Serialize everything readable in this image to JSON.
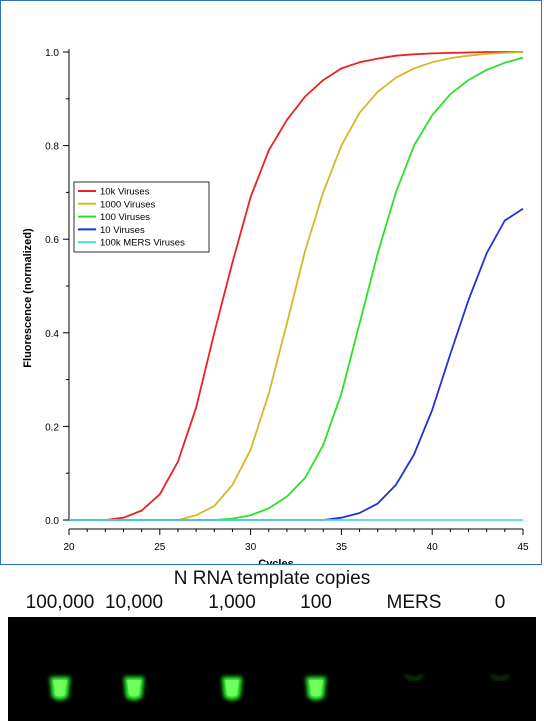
{
  "colors": {
    "frame": "#2e75b6",
    "glow": "#33ff33",
    "gel_background": "#000000"
  },
  "chart_data": {
    "type": "line",
    "title": "",
    "xlabel": "Cycles",
    "ylabel": "Fluorescence (normalized)",
    "xlim": [
      20,
      45
    ],
    "ylim": [
      0,
      1.0
    ],
    "xticks": [
      20,
      25,
      30,
      35,
      40,
      45
    ],
    "yticks": [
      0.0,
      0.2,
      0.4,
      0.6,
      0.8,
      1.0
    ],
    "xtick_labels": [
      "20",
      "25",
      "30",
      "35",
      "40",
      "45"
    ],
    "ytick_labels": [
      "0.0",
      "0.2",
      "0.4",
      "0.6",
      "0.8",
      "1.0"
    ],
    "grid": false,
    "legend_position": "middle-left",
    "x": [
      20,
      21,
      22,
      23,
      24,
      25,
      26,
      27,
      28,
      29,
      30,
      31,
      32,
      33,
      34,
      35,
      36,
      37,
      38,
      39,
      40,
      41,
      42,
      43,
      44,
      45
    ],
    "series": [
      {
        "name": "10k Viruses",
        "color": "#e8231f",
        "values": [
          0,
          0,
          0,
          0.005,
          0.02,
          0.055,
          0.125,
          0.24,
          0.4,
          0.55,
          0.69,
          0.79,
          0.855,
          0.905,
          0.94,
          0.965,
          0.978,
          0.986,
          0.992,
          0.995,
          0.997,
          0.998,
          0.999,
          1.0,
          1.0,
          1.0
        ]
      },
      {
        "name": "1000 Viruses",
        "color": "#d4b82a",
        "values": [
          0,
          0,
          0,
          0,
          0,
          0,
          0,
          0.01,
          0.03,
          0.075,
          0.15,
          0.27,
          0.42,
          0.575,
          0.7,
          0.8,
          0.87,
          0.915,
          0.945,
          0.965,
          0.978,
          0.987,
          0.992,
          0.996,
          0.998,
          1.0
        ]
      },
      {
        "name": "100 Viruses",
        "color": "#29e229",
        "values": [
          0,
          0,
          0,
          0,
          0,
          0,
          0,
          0,
          0,
          0.003,
          0.01,
          0.025,
          0.05,
          0.09,
          0.16,
          0.27,
          0.42,
          0.57,
          0.7,
          0.8,
          0.865,
          0.91,
          0.94,
          0.962,
          0.977,
          0.988
        ]
      },
      {
        "name": "10 Viruses",
        "color": "#2233d6",
        "values": [
          0,
          0,
          0,
          0,
          0,
          0,
          0,
          0,
          0,
          0,
          0,
          0,
          0,
          0,
          0,
          0.005,
          0.015,
          0.035,
          0.075,
          0.14,
          0.235,
          0.355,
          0.47,
          0.57,
          0.64,
          0.665
        ]
      },
      {
        "name": "100k MERS Viruses",
        "color": "#4fd6e0",
        "values": [
          0,
          0,
          0,
          0,
          0,
          0,
          0,
          0,
          0,
          0,
          0,
          0,
          0,
          0,
          0,
          0,
          0,
          0,
          0,
          0,
          0,
          0,
          0,
          0,
          0,
          0
        ]
      }
    ]
  },
  "tubes": {
    "title": "N RNA template copies",
    "labels": [
      "100,000",
      "10,000",
      "1,000",
      "100",
      "MERS",
      "0"
    ],
    "intensity": [
      1,
      1,
      1,
      1,
      0.25,
      0.25
    ]
  }
}
